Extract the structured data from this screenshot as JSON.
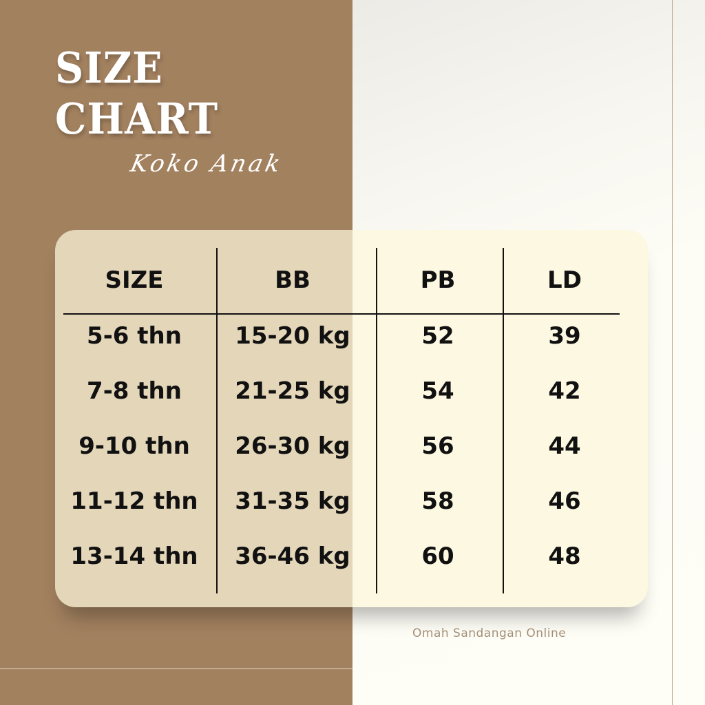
{
  "title": {
    "line1": "SIZE",
    "line2": "CHART",
    "subtitle": "Koko Anak"
  },
  "table": {
    "headers": [
      "SIZE",
      "BB",
      "PB",
      "LD"
    ],
    "rows": [
      [
        "5-6 thn",
        "15-20 kg",
        "52",
        "39"
      ],
      [
        "7-8 thn",
        "21-25 kg",
        "54",
        "42"
      ],
      [
        "9-10 thn",
        "26-30 kg",
        "56",
        "44"
      ],
      [
        "11-12 thn",
        "31-35 kg",
        "58",
        "46"
      ],
      [
        "13-14 thn",
        "36-46 kg",
        "60",
        "48"
      ]
    ]
  },
  "footer": "Omah Sandangan Online",
  "colors": {
    "brown": "#a2815f",
    "cream": "#fdfbf2",
    "card": "#fdf8e1",
    "text": "#111111"
  }
}
